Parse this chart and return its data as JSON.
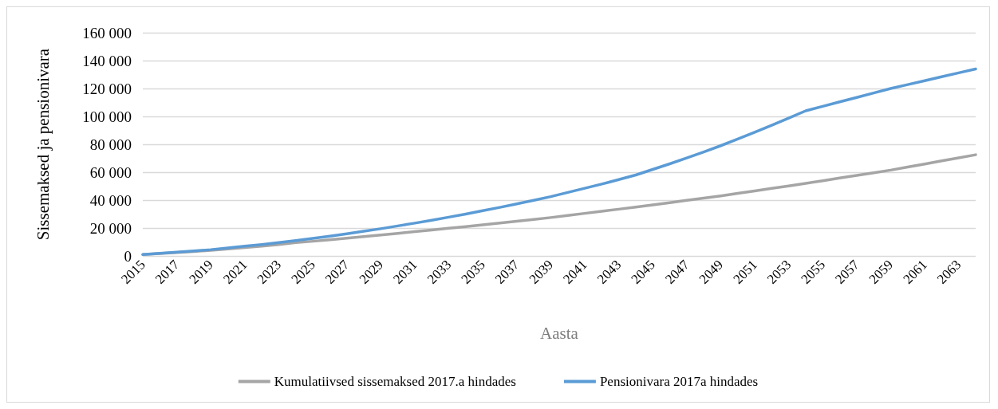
{
  "chart_data": {
    "type": "line",
    "xlabel": "Aasta",
    "ylabel": "Sissemaksed ja pensionivara",
    "categories": [
      "2015",
      null,
      "2017",
      null,
      "2019",
      null,
      "2021",
      null,
      "2023",
      null,
      "2025",
      null,
      "2027",
      null,
      "2029",
      null,
      "2031",
      null,
      "2033",
      null,
      "2035",
      null,
      "2037",
      null,
      "2039",
      null,
      "2041",
      null,
      "2043",
      null,
      "2045",
      null,
      "2047",
      null,
      "2049",
      null,
      "2051",
      null,
      "2053",
      null,
      "2055",
      null,
      "2057",
      null,
      "2059",
      null,
      "2061",
      null,
      "2063",
      null
    ],
    "series": [
      {
        "name": "Kumulatiivsed sissemaksed 2017.a hindades",
        "color": "#a5a5a5",
        "values": [
          1000,
          1700,
          2400,
          3200,
          4000,
          5000,
          6000,
          7000,
          8200,
          9500,
          10500,
          11600,
          12700,
          13800,
          15000,
          16200,
          17400,
          18600,
          19800,
          21000,
          22300,
          23600,
          24900,
          26200,
          27500,
          29000,
          30500,
          32000,
          33500,
          35000,
          36600,
          38200,
          39800,
          41400,
          43000,
          44800,
          46600,
          48400,
          50200,
          52000,
          53900,
          55800,
          57700,
          59600,
          61500,
          63700,
          65900,
          68100,
          70300,
          72500
        ]
      },
      {
        "name": "Pensionivara 2017a hindades",
        "color": "#5b9bd5",
        "values": [
          1000,
          1800,
          2700,
          3600,
          4500,
          5700,
          7000,
          8200,
          9600,
          11000,
          12600,
          14200,
          15900,
          17700,
          19500,
          21500,
          23500,
          25600,
          27800,
          30000,
          32400,
          34800,
          37300,
          39900,
          42500,
          45500,
          48500,
          51500,
          54700,
          58000,
          62000,
          66000,
          70200,
          74500,
          79000,
          83800,
          88700,
          93700,
          98800,
          104000,
          107200,
          110400,
          113600,
          116800,
          120000,
          122800,
          125600,
          128400,
          131200,
          134000
        ]
      }
    ],
    "ylim": [
      0,
      160000
    ],
    "yticks": [
      0,
      {
        "value": 20000,
        "label": "20 000"
      },
      {
        "value": 40000,
        "label": "40 000"
      },
      {
        "value": 60000,
        "label": "60 000"
      },
      {
        "value": 80000,
        "label": "80 000"
      },
      {
        "value": 100000,
        "label": "100 000"
      },
      {
        "value": 120000,
        "label": "120 000"
      },
      {
        "value": 140000,
        "label": "140 000"
      },
      {
        "value": 160000,
        "label": "160 000"
      }
    ],
    "grid": "y",
    "legend": "bottom",
    "marker": "none",
    "line_style": "solid"
  }
}
